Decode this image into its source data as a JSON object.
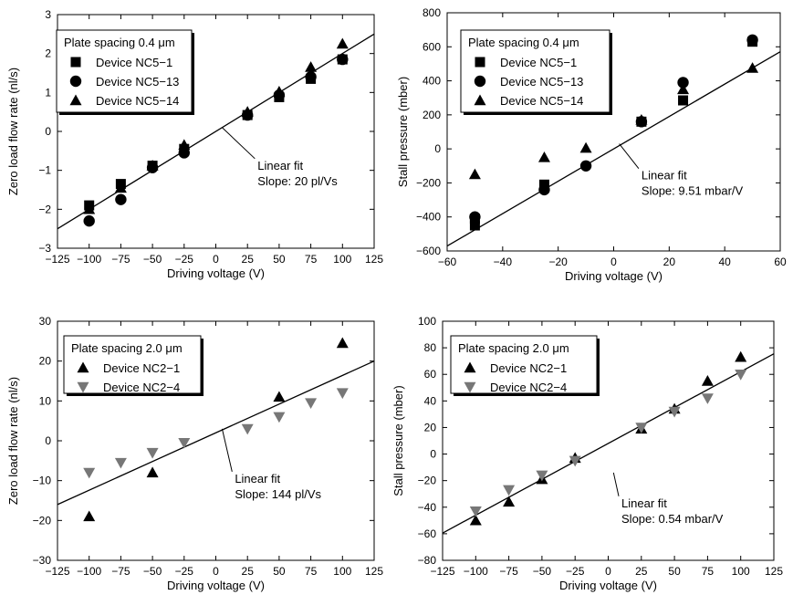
{
  "chart_data": [
    {
      "id": "tl",
      "type": "scatter",
      "xlabel": "Driving voltage (V)",
      "ylabel": "Zero load flow rate (nl/s)",
      "xlim": [
        -125,
        125
      ],
      "ylim": [
        -3,
        3
      ],
      "xticks": [
        -125,
        -100,
        -75,
        -50,
        -25,
        0,
        25,
        50,
        75,
        100,
        125
      ],
      "yticks": [
        -3,
        -2,
        -1,
        0,
        1,
        2,
        3
      ],
      "xtick_labels": [
        "−125",
        "−100",
        "−75",
        "−50",
        "−25",
        "0",
        "25",
        "50",
        "75",
        "100",
        "125"
      ],
      "ytick_labels": [
        "−3",
        "−2",
        "−1",
        "0",
        "1",
        "2",
        "3"
      ],
      "legend_title": "Plate spacing 0.4 μm",
      "legend_position": "top-left",
      "series": [
        {
          "name": "Device NC5−1",
          "marker": "square",
          "color": "#000000",
          "x": [
            -100,
            -75,
            -50,
            -25,
            25,
            50,
            75,
            100
          ],
          "y": [
            -1.9,
            -1.35,
            -0.88,
            -0.45,
            0.42,
            0.88,
            1.35,
            1.85
          ]
        },
        {
          "name": "Device NC5−13",
          "marker": "circle",
          "color": "#000000",
          "x": [
            -100,
            -75,
            -50,
            -25,
            25,
            50,
            75,
            100
          ],
          "y": [
            -2.3,
            -1.75,
            -0.93,
            -0.55,
            0.42,
            0.93,
            1.4,
            1.85
          ]
        },
        {
          "name": "Device NC5−14",
          "marker": "triangle",
          "color": "#000000",
          "x": [
            -100,
            -75,
            -50,
            -25,
            25,
            50,
            75,
            100
          ],
          "y": [
            -2.0,
            -1.45,
            -0.88,
            -0.35,
            0.5,
            1.02,
            1.65,
            2.25
          ]
        }
      ],
      "fit": {
        "x": [
          -125,
          125
        ],
        "y": [
          -2.5,
          2.5
        ]
      },
      "annotation": {
        "lines": [
          "Linear fit",
          "Slope: 20 pl/Vs"
        ],
        "x": 33,
        "y": -0.98,
        "pointer_to": [
          5,
          0.1
        ]
      }
    },
    {
      "id": "tr",
      "type": "scatter",
      "xlabel": "Driving voltage (V)",
      "ylabel": "Stall pressure (mber)",
      "xlim": [
        -60,
        60
      ],
      "ylim": [
        -600,
        800
      ],
      "xticks": [
        -60,
        -40,
        -20,
        0,
        20,
        40,
        60
      ],
      "yticks": [
        -600,
        -400,
        -200,
        0,
        200,
        400,
        600,
        800
      ],
      "xtick_labels": [
        "−60",
        "−40",
        "−20",
        "0",
        "20",
        "40",
        "60"
      ],
      "ytick_labels": [
        "−600",
        "−400",
        "−200",
        "0",
        "200",
        "400",
        "600",
        "800"
      ],
      "legend_title": "Plate spacing 0.4 μm",
      "legend_position": "top-left",
      "series": [
        {
          "name": "Device NC5−1",
          "marker": "square",
          "color": "#000000",
          "x": [
            -50,
            -50,
            -25,
            10,
            25,
            50
          ],
          "y": [
            -450,
            -410,
            -210,
            160,
            285,
            630
          ]
        },
        {
          "name": "Device NC5−13",
          "marker": "circle",
          "color": "#000000",
          "x": [
            -50,
            -25,
            -10,
            10,
            25,
            50
          ],
          "y": [
            -400,
            -240,
            -100,
            160,
            390,
            640
          ]
        },
        {
          "name": "Device NC5−14",
          "marker": "triangle",
          "color": "#000000",
          "x": [
            -50,
            -25,
            -10,
            10,
            25,
            50
          ],
          "y": [
            -150,
            -50,
            5,
            170,
            350,
            475
          ]
        }
      ],
      "fit": {
        "x": [
          -60,
          60
        ],
        "y": [
          -571,
          571
        ]
      },
      "annotation": {
        "lines": [
          "Linear fit",
          "Slope: 9.51 mbar/V"
        ],
        "x": 10,
        "y": -180,
        "pointer_to": [
          2,
          30
        ]
      }
    },
    {
      "id": "bl",
      "type": "scatter",
      "xlabel": "Driving voltage (V)",
      "ylabel": "Zero load flow rate (nl/s)",
      "xlim": [
        -125,
        125
      ],
      "ylim": [
        -30,
        30
      ],
      "xticks": [
        -125,
        -100,
        -75,
        -50,
        -25,
        0,
        25,
        50,
        75,
        100,
        125
      ],
      "yticks": [
        -30,
        -20,
        -10,
        0,
        10,
        20,
        30
      ],
      "xtick_labels": [
        "−125",
        "−100",
        "−75",
        "−50",
        "−25",
        "0",
        "25",
        "50",
        "75",
        "100",
        "125"
      ],
      "ytick_labels": [
        "−30",
        "−20",
        "−10",
        "0",
        "10",
        "20",
        "30"
      ],
      "legend_title": "Plate spacing 2.0 μm",
      "legend_position": "top-left",
      "series": [
        {
          "name": "Device NC2−1",
          "marker": "triangle",
          "color": "#000000",
          "x": [
            -100,
            -50,
            50,
            100
          ],
          "y": [
            -19,
            -8,
            11,
            24.5
          ]
        },
        {
          "name": "Device NC2−4",
          "marker": "triangle-down",
          "color": "#777777",
          "x": [
            -100,
            -75,
            -50,
            -25,
            25,
            50,
            75,
            100
          ],
          "y": [
            -8,
            -5.5,
            -3,
            -0.5,
            3,
            6,
            9.5,
            12
          ]
        }
      ],
      "fit": {
        "x": [
          -125,
          125
        ],
        "y": [
          -16,
          20
        ]
      },
      "annotation": {
        "lines": [
          "Linear fit",
          "Slope: 144 pl/Vs"
        ],
        "x": 15,
        "y": -10.5,
        "pointer_to": [
          5,
          3
        ]
      }
    },
    {
      "id": "br",
      "type": "scatter",
      "xlabel": "Driving voltage (V)",
      "ylabel": "Stall pressure (mber)",
      "xlim": [
        -125,
        125
      ],
      "ylim": [
        -80,
        100
      ],
      "xticks": [
        -125,
        -100,
        -75,
        -50,
        -25,
        0,
        25,
        50,
        75,
        100,
        125
      ],
      "yticks": [
        -80,
        -60,
        -40,
        -20,
        0,
        20,
        40,
        60,
        80,
        100
      ],
      "xtick_labels": [
        "−125",
        "−100",
        "−75",
        "−50",
        "−25",
        "0",
        "25",
        "50",
        "75",
        "100",
        "125"
      ],
      "ytick_labels": [
        "−80",
        "−60",
        "−40",
        "−20",
        "0",
        "20",
        "40",
        "60",
        "80",
        "100"
      ],
      "legend_title": "Plate spacing 2.0 μm",
      "legend_position": "top-left",
      "series": [
        {
          "name": "Device NC2−1",
          "marker": "triangle",
          "color": "#000000",
          "x": [
            -100,
            -75,
            -50,
            -25,
            25,
            50,
            75,
            100
          ],
          "y": [
            -50,
            -36,
            -19,
            -3,
            19,
            34,
            55,
            73
          ]
        },
        {
          "name": "Device NC2−4",
          "marker": "triangle-down",
          "color": "#777777",
          "x": [
            -100,
            -75,
            -50,
            -25,
            25,
            50,
            75,
            100
          ],
          "y": [
            -43,
            -27,
            -16,
            -5,
            20,
            32,
            42,
            60
          ]
        }
      ],
      "fit": {
        "x": [
          -125,
          125
        ],
        "y": [
          -59.5,
          75.5
        ]
      },
      "annotation": {
        "lines": [
          "Linear fit",
          "Slope: 0.54 mbar/V"
        ],
        "x": 10,
        "y": -40,
        "pointer_to": [
          4,
          -14
        ]
      }
    }
  ]
}
